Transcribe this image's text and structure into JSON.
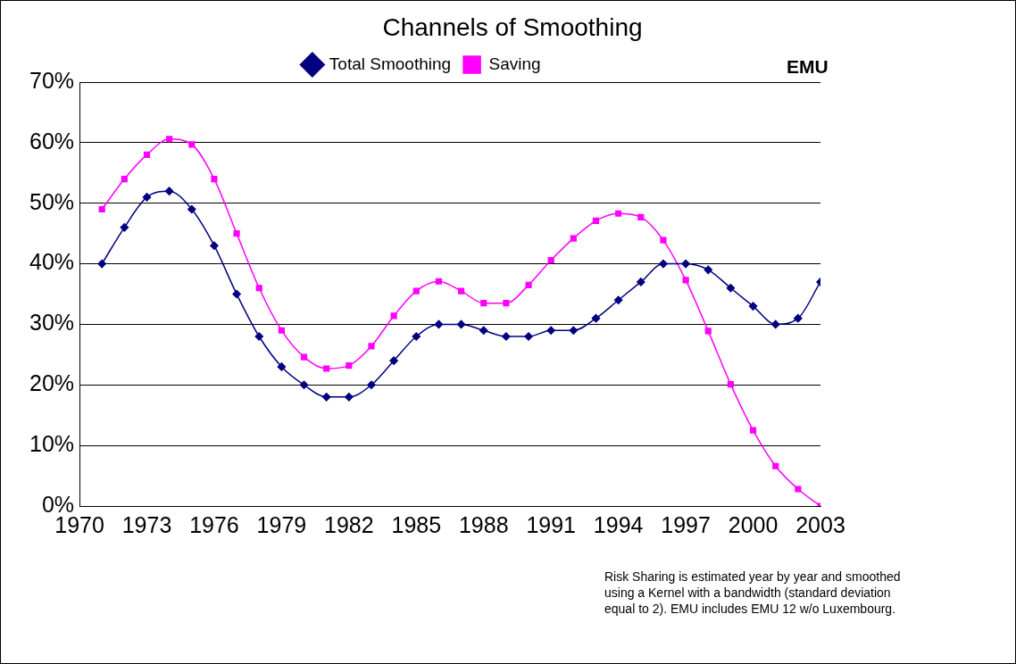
{
  "chart_data": {
    "type": "line",
    "title": "Channels of Smoothing",
    "x": [
      1971,
      1972,
      1973,
      1974,
      1975,
      1976,
      1977,
      1978,
      1979,
      1980,
      1981,
      1982,
      1983,
      1984,
      1985,
      1986,
      1987,
      1988,
      1989,
      1990,
      1991,
      1992,
      1993,
      1994,
      1995,
      1996,
      1997,
      1998,
      1999,
      2000,
      2001,
      2002,
      2003
    ],
    "series": [
      {
        "name": "Total Smoothing",
        "color": "#000080",
        "marker": "diamond",
        "values": [
          40,
          46,
          51,
          52,
          49,
          43,
          35,
          28,
          23,
          20,
          18,
          18,
          20,
          24,
          28,
          30,
          30,
          29,
          28,
          28,
          29,
          29,
          31,
          34,
          37,
          40,
          40,
          39,
          36,
          33,
          30,
          31,
          37
        ]
      },
      {
        "name": "Saving",
        "color": "#ff00ff",
        "marker": "square",
        "values": [
          49,
          54,
          58,
          60.6,
          59.7,
          54,
          45,
          36,
          29,
          24.6,
          22.7,
          23.2,
          26.4,
          31.4,
          35.5,
          37.1,
          35.5,
          33.5,
          33.5,
          36.5,
          40.6,
          44.2,
          47.1,
          48.3,
          47.7,
          43.9,
          37.3,
          28.9,
          20.1,
          12.5,
          6.6,
          2.8,
          0
        ]
      }
    ],
    "xlim": [
      1970,
      2003
    ],
    "xticks": [
      1970,
      1973,
      1976,
      1979,
      1982,
      1985,
      1988,
      1991,
      1994,
      1997,
      2000,
      2003
    ],
    "ylim": [
      0,
      70
    ],
    "yticks": [
      {
        "value": 0,
        "label": "0%"
      },
      {
        "value": 10,
        "label": "10%"
      },
      {
        "value": 20,
        "label": "20%"
      },
      {
        "value": 30,
        "label": "30%"
      },
      {
        "value": 40,
        "label": "40%"
      },
      {
        "value": 50,
        "label": "50%"
      },
      {
        "value": 60,
        "label": "60%"
      },
      {
        "value": 70,
        "label": "70%"
      }
    ],
    "grid": "y",
    "legend": "top",
    "line_style": "solid",
    "annotations": [
      "EMU",
      "Risk Sharing is estimated year by year and smoothed using a Kernel with a bandwidth (standard deviation equal to 2). EMU includes EMU 12 w/o Luxembourg."
    ]
  }
}
